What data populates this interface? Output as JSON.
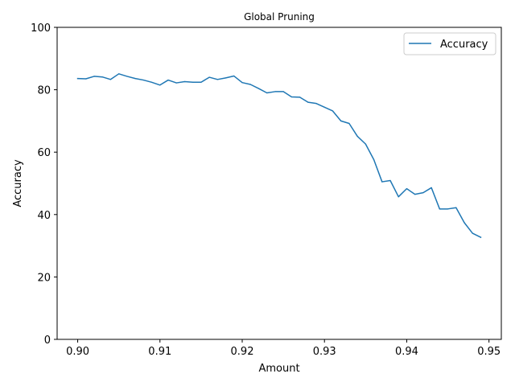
{
  "chart_data": {
    "type": "line",
    "title": "Global Pruning",
    "xlabel": "Amount",
    "ylabel": "Accuracy",
    "xlim": [
      0.8975,
      0.9515
    ],
    "ylim": [
      0,
      100
    ],
    "x_ticks": [
      0.9,
      0.91,
      0.92,
      0.93,
      0.94,
      0.95
    ],
    "x_tick_labels": [
      "0.90",
      "0.91",
      "0.92",
      "0.93",
      "0.94",
      "0.95"
    ],
    "y_ticks": [
      0,
      20,
      40,
      60,
      80,
      100
    ],
    "y_tick_labels": [
      "0",
      "20",
      "40",
      "60",
      "80",
      "100"
    ],
    "legend_position": "top-right",
    "grid": false,
    "series": [
      {
        "name": "Accuracy",
        "color": "#1f77b4",
        "x": [
          0.9,
          0.901,
          0.902,
          0.903,
          0.904,
          0.905,
          0.906,
          0.907,
          0.908,
          0.909,
          0.91,
          0.911,
          0.912,
          0.913,
          0.914,
          0.915,
          0.916,
          0.917,
          0.918,
          0.919,
          0.92,
          0.921,
          0.922,
          0.923,
          0.924,
          0.925,
          0.926,
          0.927,
          0.928,
          0.929,
          0.93,
          0.931,
          0.932,
          0.933,
          0.934,
          0.935,
          0.936,
          0.937,
          0.938,
          0.939,
          0.94,
          0.941,
          0.942,
          0.943,
          0.944,
          0.945,
          0.946,
          0.947,
          0.948,
          0.949
        ],
        "values": [
          83.6,
          83.5,
          84.3,
          84.1,
          83.3,
          85.1,
          84.3,
          83.6,
          83.1,
          82.4,
          81.5,
          83.1,
          82.2,
          82.6,
          82.4,
          82.4,
          84.0,
          83.3,
          83.8,
          84.4,
          82.3,
          81.7,
          80.4,
          79.0,
          79.4,
          79.4,
          77.7,
          77.6,
          76.0,
          75.6,
          74.4,
          73.2,
          70.0,
          69.2,
          65.1,
          62.6,
          57.6,
          50.5,
          50.9,
          45.7,
          48.3,
          46.5,
          47.0,
          48.6,
          41.8,
          41.8,
          42.2,
          37.4,
          34.0,
          32.7
        ]
      }
    ]
  }
}
